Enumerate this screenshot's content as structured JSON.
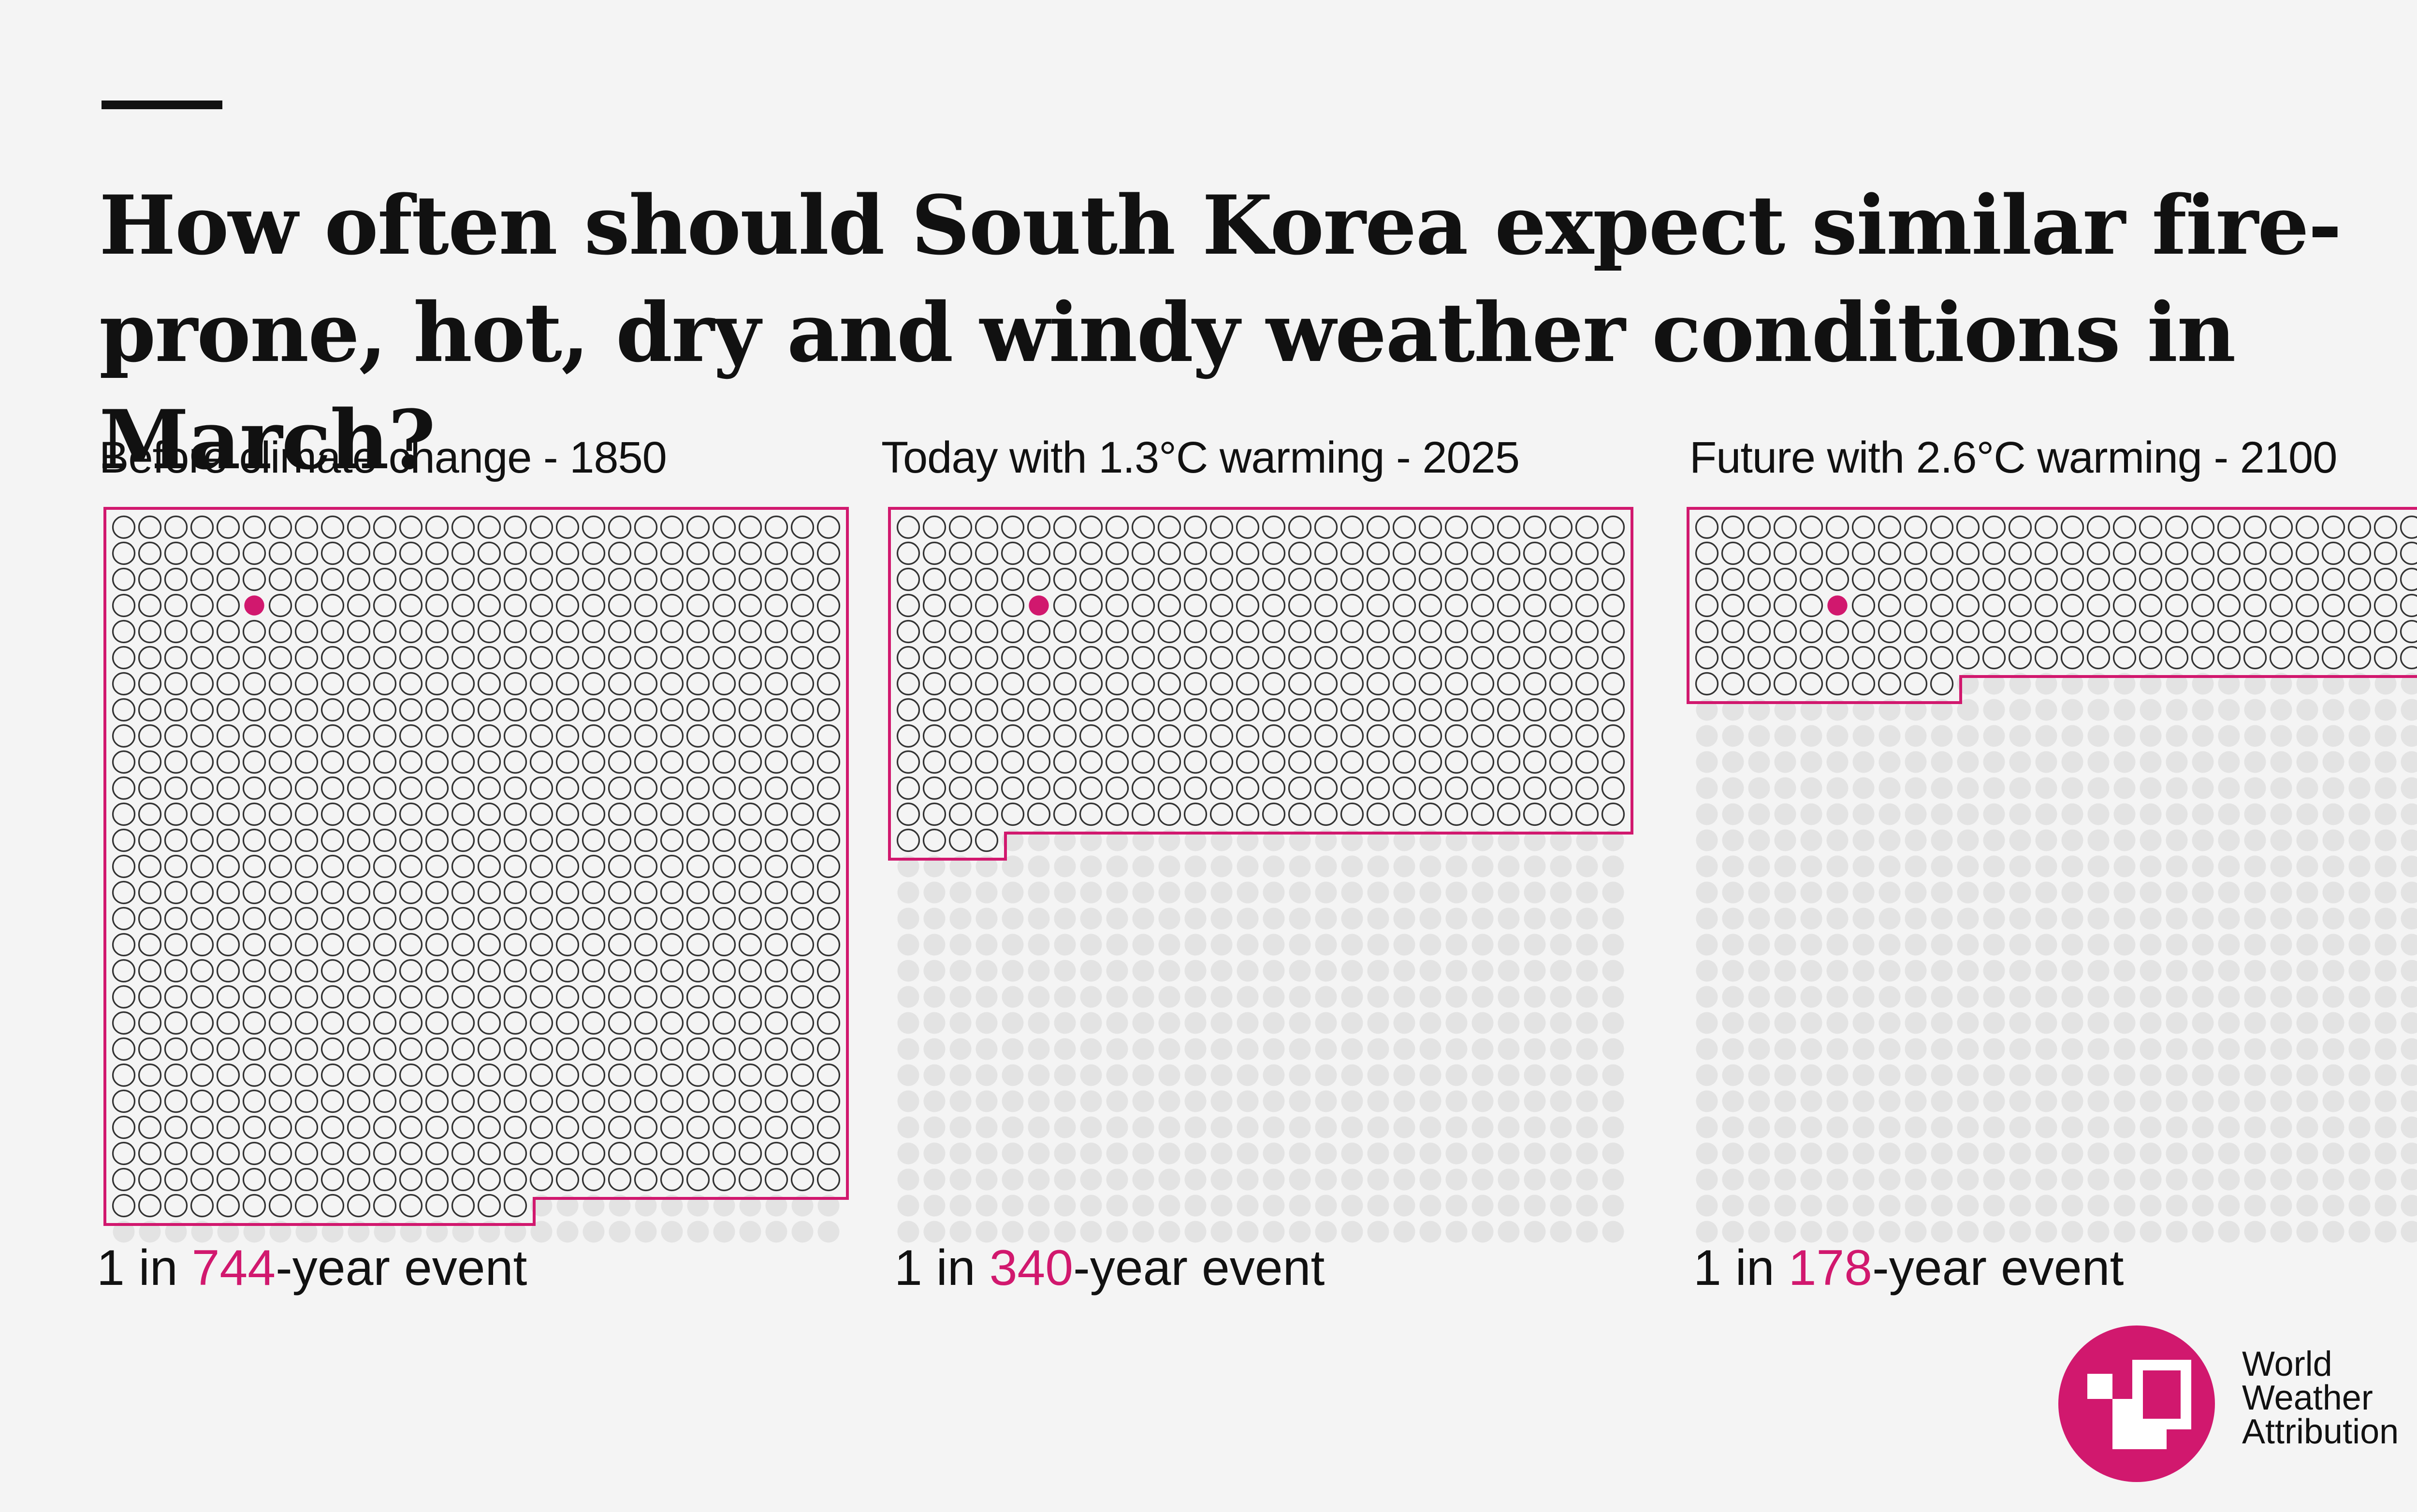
{
  "title": "How often should South Korea expect similar fire-prone, hot, dry and windy weather conditions in March?",
  "colors": {
    "accent": "#d1186e",
    "background": "#f4f4f4",
    "empty_dot": "#e3e3e3",
    "outline_dot": "#333333"
  },
  "chart_data": {
    "type": "waffle",
    "title": "How often should South Korea expect similar fire-prone, hot, dry and windy weather conditions in March?",
    "grid": {
      "columns": 28,
      "rows": 28,
      "total_cells": 784
    },
    "highlighted_cell": {
      "row": 3,
      "column": 5
    },
    "panels": [
      {
        "label": "Before climate change - 1850",
        "return_period_years": 744,
        "caption_prefix": "1 in ",
        "caption_value": "744",
        "caption_suffix": "-year event"
      },
      {
        "label": "Today with 1.3°C warming - 2025",
        "return_period_years": 340,
        "caption_prefix": "1 in ",
        "caption_value": "340",
        "caption_suffix": "-year event"
      },
      {
        "label": "Future with 2.6°C warming - 2100",
        "return_period_years": 178,
        "caption_prefix": "1 in ",
        "caption_value": "178",
        "caption_suffix": "-year event"
      }
    ]
  },
  "logo": {
    "line1": "World",
    "line2": "Weather",
    "line3": "Attribution"
  }
}
